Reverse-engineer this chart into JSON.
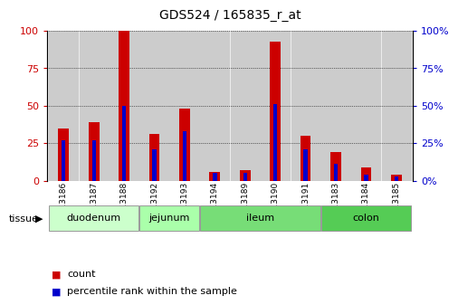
{
  "title": "GDS524 / 165835_r_at",
  "samples": [
    "GSM13186",
    "GSM13187",
    "GSM13188",
    "GSM13192",
    "GSM13193",
    "GSM13194",
    "GSM13189",
    "GSM13190",
    "GSM13191",
    "GSM13183",
    "GSM13184",
    "GSM13185"
  ],
  "count_values": [
    35,
    39,
    100,
    31,
    48,
    6,
    7,
    93,
    30,
    19,
    9,
    4
  ],
  "percentile_values": [
    27,
    27,
    50,
    21,
    33,
    5,
    5,
    51,
    21,
    11,
    4,
    3
  ],
  "tissue_groups": [
    {
      "label": "duodenum",
      "start": 0,
      "end": 3
    },
    {
      "label": "jejunum",
      "start": 3,
      "end": 5
    },
    {
      "label": "ileum",
      "start": 5,
      "end": 9
    },
    {
      "label": "colon",
      "start": 9,
      "end": 12
    }
  ],
  "tissue_colors": [
    "#ccffcc",
    "#aaffaa",
    "#77dd77",
    "#55cc55"
  ],
  "red_color": "#cc0000",
  "blue_color": "#0000cc",
  "ylim": [
    0,
    100
  ],
  "yticks": [
    0,
    25,
    50,
    75,
    100
  ],
  "bg_color": "#ffffff",
  "bar_bg_color": "#cccccc",
  "legend_red": "count",
  "legend_blue": "percentile rank within the sample"
}
